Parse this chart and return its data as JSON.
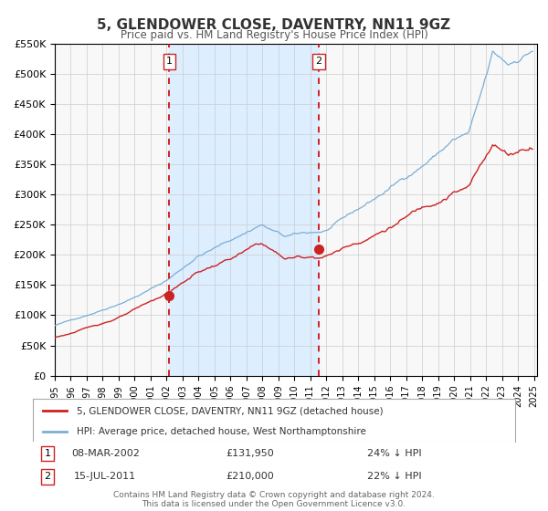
{
  "title": "5, GLENDOWER CLOSE, DAVENTRY, NN11 9GZ",
  "subtitle": "Price paid vs. HM Land Registry's House Price Index (HPI)",
  "legend_line1": "5, GLENDOWER CLOSE, DAVENTRY, NN11 9GZ (detached house)",
  "legend_line2": "HPI: Average price, detached house, West Northamptonshire",
  "annotation1_label": "1",
  "annotation1_date": "08-MAR-2002",
  "annotation1_price": "£131,950",
  "annotation1_hpi": "24% ↓ HPI",
  "annotation2_label": "2",
  "annotation2_date": "15-JUL-2011",
  "annotation2_price": "£210,000",
  "annotation2_hpi": "22% ↓ HPI",
  "vline1_x": 2002.17,
  "vline2_x": 2011.54,
  "point1_x": 2002.17,
  "point1_y": 131950,
  "point2_x": 2011.54,
  "point2_y": 210000,
  "shade_start": 2002.17,
  "shade_end": 2011.54,
  "ylim": [
    0,
    550000
  ],
  "xlim": [
    1995,
    2025.2
  ],
  "background_color": "#ffffff",
  "plot_bg_color": "#f8f8f8",
  "shade_color": "#ddeeff",
  "grid_color": "#cccccc",
  "hpi_color": "#7aaed6",
  "price_color": "#cc2222",
  "vline_color": "#cc0000",
  "footer_text": "Contains HM Land Registry data © Crown copyright and database right 2024.\nThis data is licensed under the Open Government Licence v3.0."
}
